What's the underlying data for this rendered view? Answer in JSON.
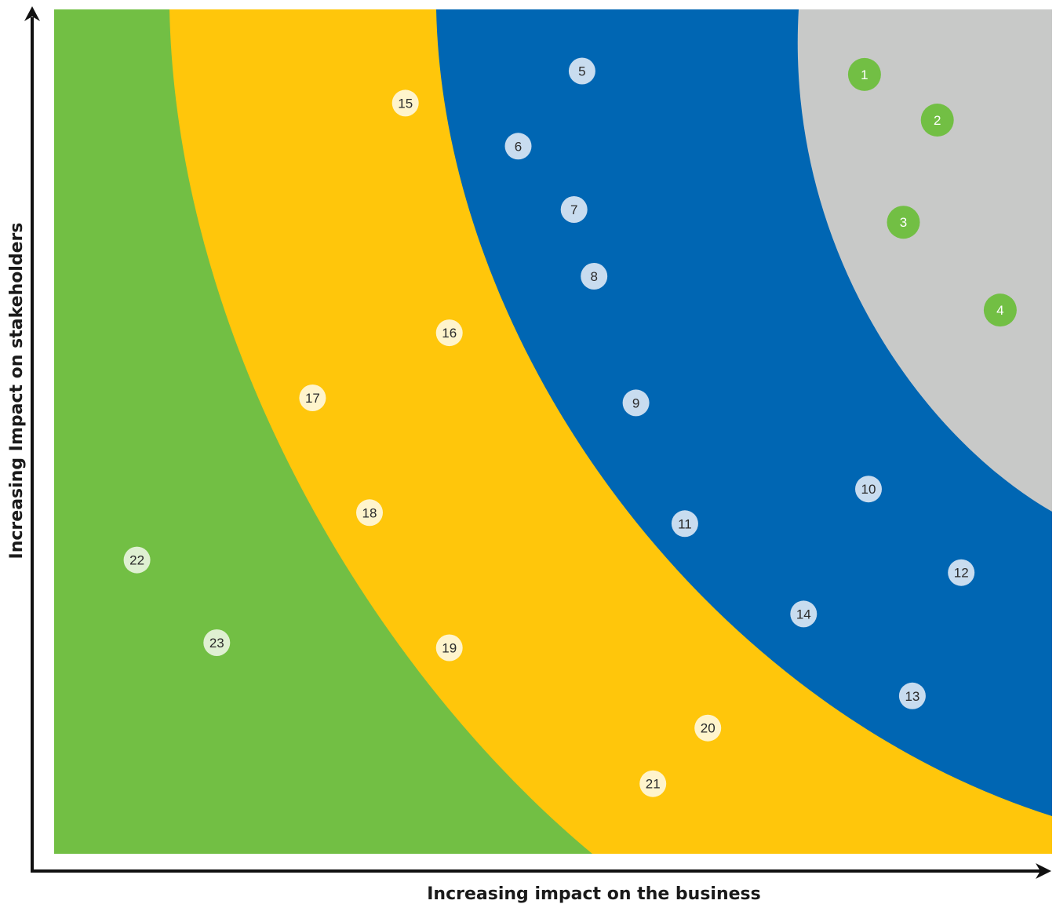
{
  "chart_data": {
    "type": "scatter",
    "title": "",
    "xlabel": "Increasing impact on the business",
    "ylabel": "Increasing Impact on stakeholders",
    "xlim": [
      0,
      100
    ],
    "ylim": [
      0,
      100
    ],
    "grid": false,
    "colors": {
      "zone_green": "#72bf44",
      "zone_yellow": "#ffc60b",
      "zone_blue": "#0066b3",
      "zone_grey": "#c8c9c8",
      "axis": "#111111"
    },
    "series": [
      {
        "zone": "grey",
        "marker_fill": "#72bf44",
        "label_color": "#ffffff",
        "points": [
          {
            "label": "1",
            "x": 81.2,
            "y": 92.3
          },
          {
            "label": "2",
            "x": 88.5,
            "y": 86.9
          },
          {
            "label": "3",
            "x": 85.1,
            "y": 74.8
          },
          {
            "label": "4",
            "x": 94.8,
            "y": 64.4
          }
        ]
      },
      {
        "zone": "blue",
        "marker_fill": "#c8dcef",
        "label_color": "#2b2b2b",
        "points": [
          {
            "label": "5",
            "x": 52.9,
            "y": 92.7
          },
          {
            "label": "6",
            "x": 46.5,
            "y": 83.8
          },
          {
            "label": "7",
            "x": 52.1,
            "y": 76.3
          },
          {
            "label": "8",
            "x": 54.1,
            "y": 68.4
          },
          {
            "label": "9",
            "x": 58.3,
            "y": 53.4
          },
          {
            "label": "10",
            "x": 81.6,
            "y": 43.2
          },
          {
            "label": "11",
            "x": 63.2,
            "y": 39.1
          },
          {
            "label": "12",
            "x": 90.9,
            "y": 33.3
          },
          {
            "label": "13",
            "x": 86.0,
            "y": 18.7
          },
          {
            "label": "14",
            "x": 75.1,
            "y": 28.4
          }
        ]
      },
      {
        "zone": "yellow",
        "marker_fill": "#fff4cc",
        "label_color": "#2b2b2b",
        "points": [
          {
            "label": "15",
            "x": 35.2,
            "y": 88.9
          },
          {
            "label": "16",
            "x": 39.6,
            "y": 61.7
          },
          {
            "label": "17",
            "x": 25.9,
            "y": 54.0
          },
          {
            "label": "18",
            "x": 31.6,
            "y": 40.4
          },
          {
            "label": "19",
            "x": 39.6,
            "y": 24.4
          },
          {
            "label": "20",
            "x": 65.5,
            "y": 14.9
          },
          {
            "label": "21",
            "x": 60.0,
            "y": 8.3
          }
        ]
      },
      {
        "zone": "green",
        "marker_fill": "#dff0d2",
        "label_color": "#2b2b2b",
        "points": [
          {
            "label": "22",
            "x": 8.3,
            "y": 34.8
          },
          {
            "label": "23",
            "x": 16.3,
            "y": 25.0
          }
        ]
      }
    ]
  }
}
